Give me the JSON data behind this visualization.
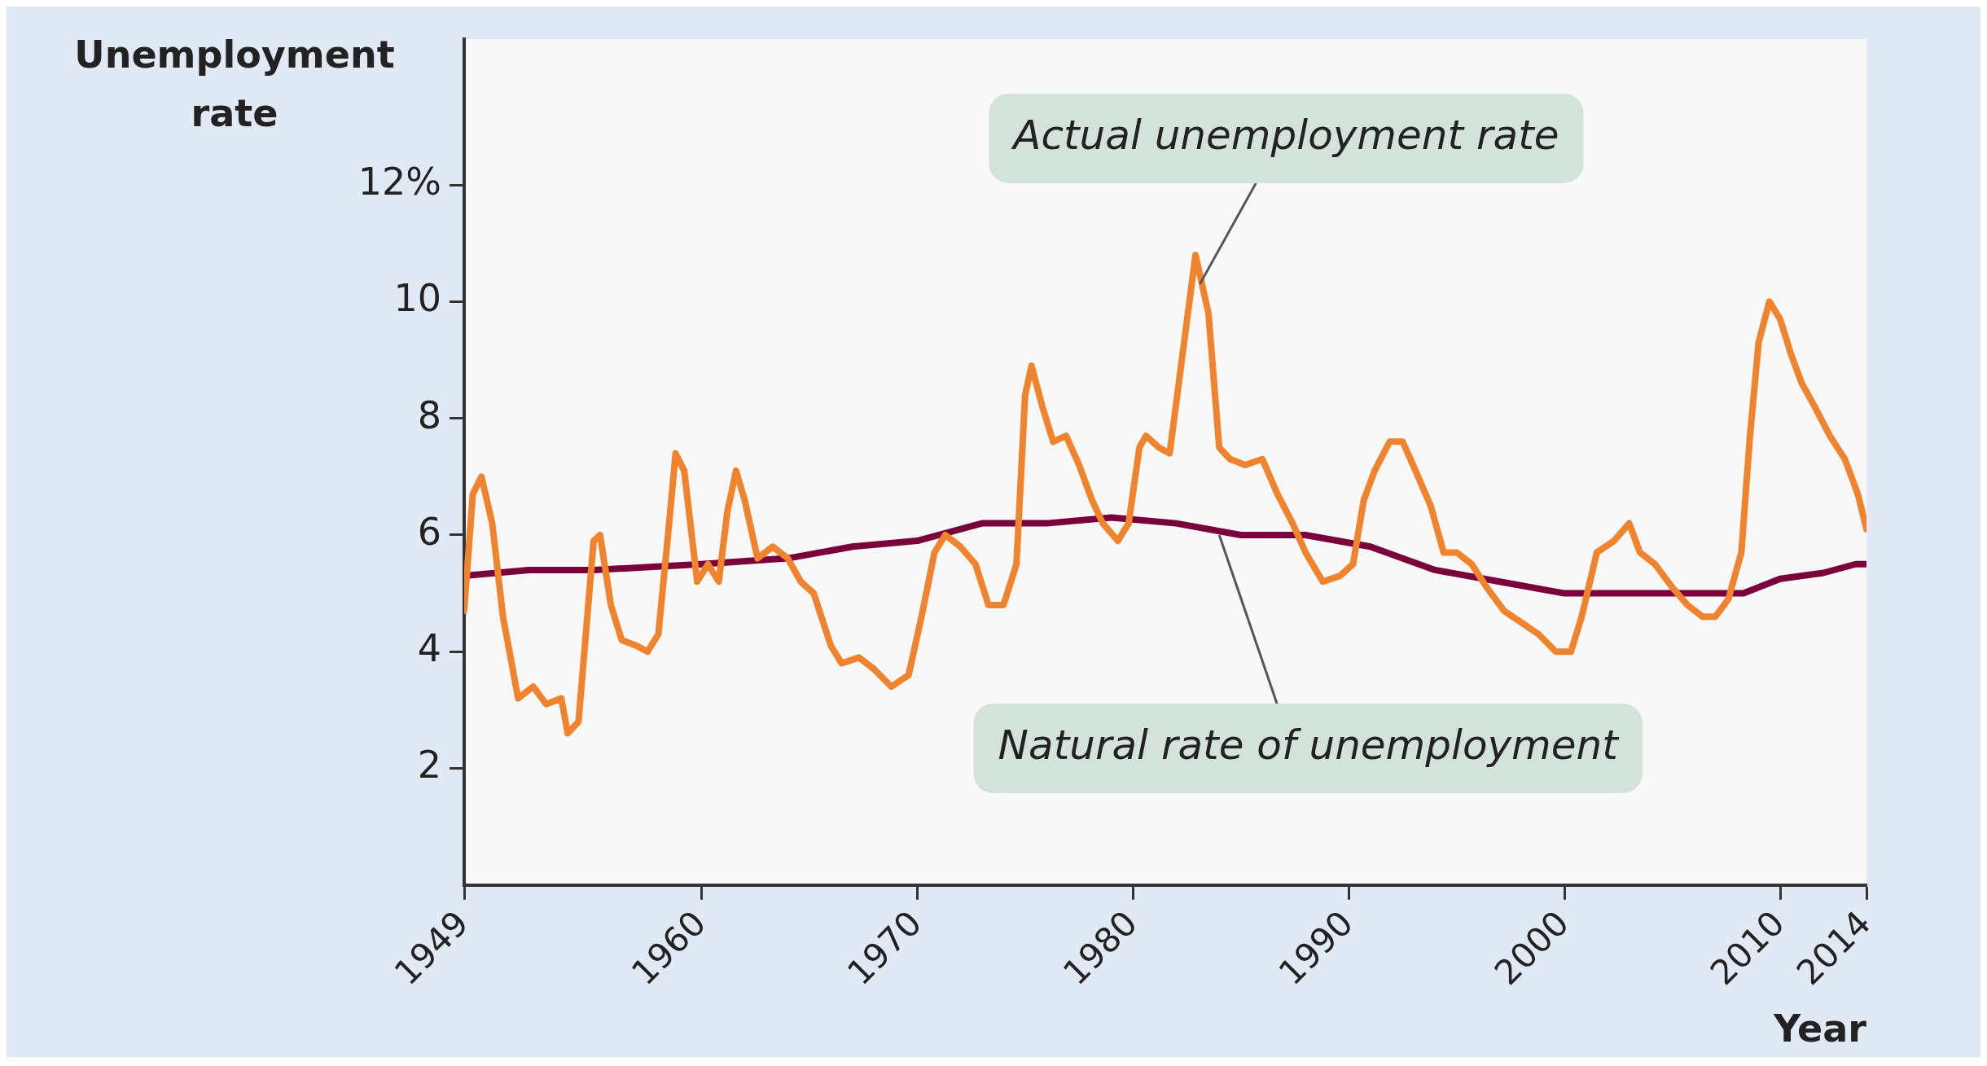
{
  "chart_data": {
    "type": "line",
    "xlabel": "Year",
    "ylabel": "Unemployment rate",
    "xlim": [
      1949,
      2014
    ],
    "xticks": [
      1949,
      1960,
      1970,
      1980,
      1990,
      2000,
      2010,
      2014
    ],
    "ylim": [
      0,
      14.5
    ],
    "yticks": [
      2,
      4,
      6,
      8,
      10,
      {
        "value": 12,
        "label": "12%"
      }
    ],
    "grid": false,
    "legend": false,
    "marker": "none",
    "line_style": "solid",
    "series": [
      {
        "color": "#f0832e",
        "x": [
          1949,
          1949.4,
          1949.8,
          1950.3,
          1950.8,
          1951.5,
          1952.2,
          1952.8,
          1953.5,
          1953.8,
          1954.3,
          1955,
          1955.3,
          1955.8,
          1956.3,
          1957,
          1957.5,
          1958,
          1958.5,
          1958.8,
          1959.2,
          1959.8,
          1960.3,
          1960.8,
          1961.2,
          1961.6,
          1962,
          1962.6,
          1963.3,
          1964,
          1964.6,
          1965.2,
          1966,
          1966.5,
          1967.3,
          1968,
          1968.8,
          1969.6,
          1970.2,
          1970.8,
          1971.3,
          1972,
          1972.7,
          1973.3,
          1974,
          1974.6,
          1975,
          1975.3,
          1975.8,
          1976.3,
          1976.9,
          1977.5,
          1978.1,
          1978.6,
          1979.3,
          1979.8,
          1980.3,
          1980.6,
          1981.2,
          1981.7,
          1982.3,
          1982.9,
          1983.5,
          1984,
          1984.5,
          1985.2,
          1986,
          1986.7,
          1987.4,
          1988,
          1988.8,
          1989.6,
          1990.2,
          1990.7,
          1991.2,
          1991.9,
          1992.5,
          1993.1,
          1993.8,
          1994.4,
          1995,
          1995.7,
          1996.4,
          1997.2,
          1998,
          1998.8,
          1999.6,
          2000.3,
          2000.8,
          2001.5,
          2002.3,
          2003,
          2003.5,
          2004.2,
          2005,
          2005.7,
          2006.4,
          2007,
          2007.6,
          2008.2,
          2008.6,
          2009,
          2009.5,
          2010,
          2010.5,
          2011,
          2011.6,
          2012.3,
          2013,
          2013.6,
          2014
        ],
        "values": [
          4.7,
          6.7,
          7.0,
          6.2,
          4.6,
          3.2,
          3.4,
          3.1,
          3.2,
          2.6,
          2.8,
          5.9,
          6.0,
          4.8,
          4.2,
          4.1,
          4.0,
          4.3,
          6.2,
          7.4,
          7.1,
          5.2,
          5.5,
          5.2,
          6.4,
          7.1,
          6.6,
          5.6,
          5.8,
          5.6,
          5.2,
          5.0,
          4.1,
          3.8,
          3.9,
          3.7,
          3.4,
          3.6,
          4.6,
          5.7,
          6.0,
          5.8,
          5.5,
          4.8,
          4.8,
          5.5,
          8.4,
          8.9,
          8.2,
          7.6,
          7.7,
          7.2,
          6.6,
          6.2,
          5.9,
          6.2,
          7.5,
          7.7,
          7.5,
          7.4,
          9.1,
          10.8,
          9.8,
          7.5,
          7.3,
          7.2,
          7.3,
          6.7,
          6.2,
          5.7,
          5.2,
          5.3,
          5.5,
          6.6,
          7.1,
          7.6,
          7.6,
          7.1,
          6.5,
          5.7,
          5.7,
          5.5,
          5.1,
          4.7,
          4.5,
          4.3,
          4.0,
          4.0,
          4.6,
          5.7,
          5.9,
          6.2,
          5.7,
          5.5,
          5.1,
          4.8,
          4.6,
          4.6,
          4.9,
          5.7,
          7.7,
          9.3,
          10.0,
          9.7,
          9.1,
          8.6,
          8.2,
          7.7,
          7.3,
          6.7,
          6.1
        ]
      },
      {
        "color": "#7a003c",
        "x": [
          1949,
          1952,
          1955,
          1960,
          1964,
          1967,
          1970,
          1973,
          1976,
          1979,
          1982,
          1985,
          1988,
          1991,
          1994,
          1997,
          2000,
          2003,
          2006,
          2008.3,
          2010,
          2012,
          2013.5,
          2014
        ],
        "values": [
          5.3,
          5.4,
          5.4,
          5.5,
          5.6,
          5.8,
          5.9,
          6.2,
          6.2,
          6.3,
          6.2,
          6.0,
          6.0,
          5.8,
          5.4,
          5.2,
          5.0,
          5.0,
          5.0,
          5.0,
          5.25,
          5.35,
          5.5,
          5.5
        ]
      }
    ],
    "annotations": [
      {
        "text": "Actual unemployment rate",
        "x": 1983.1,
        "y": 10.3
      },
      {
        "text": "Natural rate of unemployment",
        "x": 1984,
        "y": 6.0
      }
    ]
  }
}
